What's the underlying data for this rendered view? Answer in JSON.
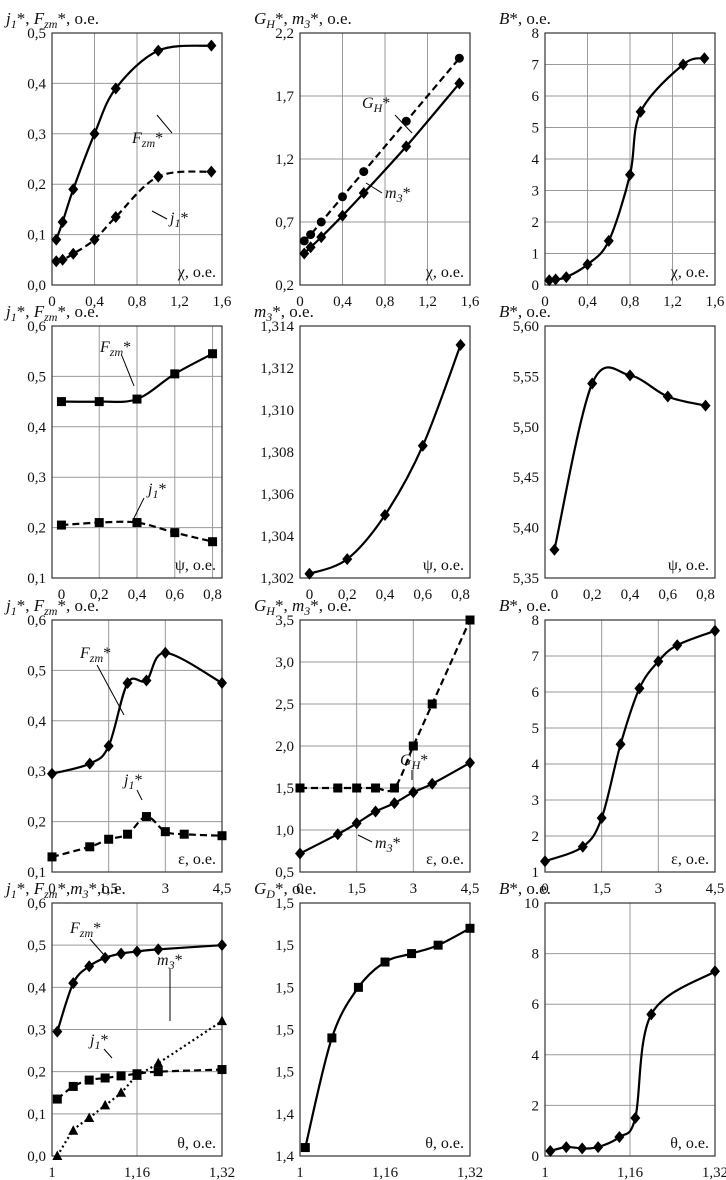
{
  "chart_data": [
    {
      "type": "line",
      "ylabel": "j₁*, F_zm*, о.е.",
      "xlabel": "χ, о.е.",
      "xlim": [
        0,
        1.6
      ],
      "ylim": [
        0,
        0.5
      ],
      "xticks": [
        0,
        0.4,
        0.8,
        1.2,
        1.6
      ],
      "yticks": [
        0,
        0.1,
        0.2,
        0.3,
        0.4,
        0.5
      ],
      "x_tick_labels": [
        "0",
        "0,4",
        "0,8",
        "1,2",
        "1,6"
      ],
      "y_tick_labels": [
        "0,0",
        "0,1",
        "0,2",
        "0,3",
        "0,4",
        "0,5"
      ],
      "grid": true,
      "series": [
        {
          "name": "F_zm*",
          "style": "solid",
          "marker": "diamond",
          "x": [
            0.04,
            0.1,
            0.2,
            0.4,
            0.6,
            1.0,
            1.5
          ],
          "y": [
            0.09,
            0.125,
            0.19,
            0.3,
            0.39,
            0.465,
            0.475
          ]
        },
        {
          "name": "j₁*",
          "style": "dashed",
          "marker": "diamond",
          "x": [
            0.04,
            0.1,
            0.2,
            0.4,
            0.6,
            1.0,
            1.5
          ],
          "y": [
            0.047,
            0.05,
            0.062,
            0.09,
            0.135,
            0.215,
            0.225
          ]
        }
      ],
      "annotations": [
        "F_zm*",
        "j₁*"
      ]
    },
    {
      "type": "line",
      "ylabel": "G_H*, m₃*, о.е.",
      "xlabel": "χ, о.е.",
      "xlim": [
        0,
        1.6
      ],
      "ylim": [
        0.2,
        2.2
      ],
      "xticks": [
        0,
        0.4,
        0.8,
        1.2,
        1.6
      ],
      "yticks": [
        0.2,
        0.7,
        1.2,
        1.7,
        2.2
      ],
      "x_tick_labels": [
        "0",
        "0,4",
        "0,8",
        "1,2",
        "1,6"
      ],
      "y_tick_labels": [
        "0,2",
        "0,7",
        "1,2",
        "1,7",
        "2,2"
      ],
      "grid": true,
      "series": [
        {
          "name": "G_H*",
          "style": "dashed",
          "marker": "circle",
          "x": [
            0.04,
            0.1,
            0.2,
            0.4,
            0.6,
            1.0,
            1.5
          ],
          "y": [
            0.55,
            0.6,
            0.7,
            0.9,
            1.1,
            1.5,
            2.0
          ]
        },
        {
          "name": "m₃*",
          "style": "solid",
          "marker": "diamond",
          "x": [
            0.04,
            0.1,
            0.2,
            0.4,
            0.6,
            1.0,
            1.5
          ],
          "y": [
            0.45,
            0.5,
            0.58,
            0.75,
            0.93,
            1.3,
            1.8
          ]
        }
      ],
      "annotations": [
        "G_H*",
        "m₃*"
      ]
    },
    {
      "type": "line",
      "ylabel": "B*, о.е.",
      "xlabel": "χ, о.е.",
      "xlim": [
        0,
        1.6
      ],
      "ylim": [
        0,
        8
      ],
      "xticks": [
        0,
        0.4,
        0.8,
        1.2,
        1.6
      ],
      "yticks": [
        0,
        1,
        2,
        3,
        4,
        5,
        6,
        7,
        8
      ],
      "x_tick_labels": [
        "0",
        "0,4",
        "0,8",
        "1,2",
        "1,6"
      ],
      "y_tick_labels": [
        "0",
        "1",
        "2",
        "3",
        "4",
        "5",
        "6",
        "7",
        "8"
      ],
      "grid": true,
      "series": [
        {
          "name": "B*",
          "style": "solid",
          "marker": "diamond",
          "x": [
            0.04,
            0.1,
            0.2,
            0.4,
            0.6,
            0.8,
            0.9,
            1.3,
            1.5
          ],
          "y": [
            0.15,
            0.18,
            0.25,
            0.65,
            1.4,
            3.5,
            5.5,
            7.0,
            7.2
          ]
        }
      ]
    },
    {
      "type": "line",
      "ylabel": "j₁*, F_zm*, о.е.",
      "xlabel": "ψ, о.е.",
      "xlim": [
        -0.05,
        0.85
      ],
      "ylim": [
        0.1,
        0.6
      ],
      "xticks": [
        0,
        0.2,
        0.4,
        0.6,
        0.8
      ],
      "yticks": [
        0.1,
        0.2,
        0.3,
        0.4,
        0.5,
        0.6
      ],
      "x_tick_labels": [
        "0",
        "0,2",
        "0,4",
        "0,6",
        "0,8"
      ],
      "y_tick_labels": [
        "0,1",
        "0,2",
        "0,3",
        "0,4",
        "0,5",
        "0,6"
      ],
      "grid": true,
      "series": [
        {
          "name": "F_zm*",
          "style": "solid",
          "marker": "square",
          "x": [
            0,
            0.2,
            0.4,
            0.6,
            0.8
          ],
          "y": [
            0.45,
            0.45,
            0.455,
            0.505,
            0.545
          ]
        },
        {
          "name": "j₁*",
          "style": "dashed",
          "marker": "square",
          "x": [
            0,
            0.2,
            0.4,
            0.6,
            0.8
          ],
          "y": [
            0.205,
            0.21,
            0.21,
            0.19,
            0.172
          ]
        }
      ],
      "annotations": [
        "F_zm*",
        "j₁*"
      ]
    },
    {
      "type": "line",
      "ylabel": "m₃*, о.е.",
      "xlabel": "ψ, о.е.",
      "xlim": [
        -0.05,
        0.85
      ],
      "ylim": [
        1.302,
        1.314
      ],
      "xticks": [
        0,
        0.2,
        0.4,
        0.6,
        0.8
      ],
      "yticks": [
        1.302,
        1.304,
        1.306,
        1.308,
        1.31,
        1.312,
        1.314
      ],
      "x_tick_labels": [
        "0",
        "0,2",
        "0,4",
        "0,6",
        "0,8"
      ],
      "y_tick_labels": [
        "1,302",
        "1,304",
        "1,306",
        "1,308",
        "1,310",
        "1,312",
        "1,314"
      ],
      "grid": false,
      "series": [
        {
          "name": "m₃*",
          "style": "solid",
          "marker": "diamond",
          "x": [
            0,
            0.2,
            0.4,
            0.6,
            0.8
          ],
          "y": [
            1.3022,
            1.3029,
            1.305,
            1.3083,
            1.3131
          ]
        }
      ]
    },
    {
      "type": "line",
      "ylabel": "B*, о.е.",
      "xlabel": "ψ, о.е.",
      "xlim": [
        -0.05,
        0.85
      ],
      "ylim": [
        5.35,
        5.6
      ],
      "xticks": [
        0,
        0.2,
        0.4,
        0.6,
        0.8
      ],
      "yticks": [
        5.35,
        5.4,
        5.45,
        5.5,
        5.55,
        5.6
      ],
      "x_tick_labels": [
        "0",
        "0,2",
        "0,4",
        "0,6",
        "0,8"
      ],
      "y_tick_labels": [
        "5,35",
        "5,40",
        "5,45",
        "5,50",
        "5,55",
        "5,60"
      ],
      "grid": false,
      "series": [
        {
          "name": "B*",
          "style": "solid",
          "marker": "diamond",
          "x": [
            0,
            0.2,
            0.4,
            0.6,
            0.8
          ],
          "y": [
            5.378,
            5.543,
            5.551,
            5.53,
            5.521
          ]
        }
      ]
    },
    {
      "type": "line",
      "ylabel": "j₁*, F_zm*, о.е.",
      "xlabel": "ε, о.е.",
      "xlim": [
        0,
        4.5
      ],
      "ylim": [
        0.1,
        0.6
      ],
      "xticks": [
        0,
        1.5,
        3,
        4.5
      ],
      "yticks": [
        0.1,
        0.2,
        0.3,
        0.4,
        0.5,
        0.6
      ],
      "x_tick_labels": [
        "0",
        "1,5",
        "3",
        "4,5"
      ],
      "y_tick_labels": [
        "0,1",
        "0,2",
        "0,3",
        "0,4",
        "0,5",
        "0,6"
      ],
      "grid": true,
      "series": [
        {
          "name": "F_zm*",
          "style": "solid",
          "marker": "diamond",
          "x": [
            0,
            1,
            1.5,
            2,
            2.5,
            3,
            4.5
          ],
          "y": [
            0.295,
            0.315,
            0.35,
            0.475,
            0.48,
            0.535,
            0.475
          ]
        },
        {
          "name": "j₁*",
          "style": "dashed",
          "marker": "square",
          "x": [
            0,
            1,
            1.5,
            2,
            2.5,
            3,
            3.5,
            4.5
          ],
          "y": [
            0.13,
            0.15,
            0.165,
            0.175,
            0.21,
            0.18,
            0.175,
            0.172
          ]
        }
      ],
      "annotations": [
        "F_zm*",
        "j₁*"
      ]
    },
    {
      "type": "line",
      "ylabel": "G_H*, m₃*, о.е.",
      "xlabel": "ε, о.е.",
      "xlim": [
        0,
        4.5
      ],
      "ylim": [
        0.5,
        3.5
      ],
      "xticks": [
        0,
        1.5,
        3,
        4.5
      ],
      "yticks": [
        0.5,
        1.0,
        1.5,
        2.0,
        2.5,
        3.0,
        3.5
      ],
      "x_tick_labels": [
        "0",
        "1,5",
        "3",
        "4,5"
      ],
      "y_tick_labels": [
        "0,5",
        "1,0",
        "1,5",
        "2,0",
        "2,5",
        "3,0",
        "3,5"
      ],
      "grid": true,
      "series": [
        {
          "name": "G_H*",
          "style": "dashed",
          "marker": "square",
          "x": [
            0,
            1,
            1.5,
            2,
            2.5,
            3,
            3.5,
            4.5
          ],
          "y": [
            1.5,
            1.5,
            1.5,
            1.5,
            1.5,
            2.0,
            2.5,
            3.5
          ]
        },
        {
          "name": "m₃*",
          "style": "solid",
          "marker": "diamond",
          "x": [
            0,
            1,
            1.5,
            2,
            2.5,
            3,
            3.5,
            4.5
          ],
          "y": [
            0.72,
            0.95,
            1.08,
            1.22,
            1.32,
            1.45,
            1.55,
            1.8
          ]
        }
      ],
      "annotations": [
        "G_H*",
        "m₃*"
      ]
    },
    {
      "type": "line",
      "ylabel": "B*, о.е.",
      "xlabel": "ε, о.е.",
      "xlim": [
        0,
        4.5
      ],
      "ylim": [
        1,
        8
      ],
      "xticks": [
        0,
        1.5,
        3,
        4.5
      ],
      "yticks": [
        1,
        2,
        3,
        4,
        5,
        6,
        7,
        8
      ],
      "x_tick_labels": [
        "0",
        "1,5",
        "3",
        "4,5"
      ],
      "y_tick_labels": [
        "1",
        "2",
        "3",
        "4",
        "5",
        "6",
        "7",
        "8"
      ],
      "grid": true,
      "series": [
        {
          "name": "B*",
          "style": "solid",
          "marker": "diamond",
          "x": [
            0,
            1,
            1.5,
            2,
            2.5,
            3,
            3.5,
            4.5
          ],
          "y": [
            1.3,
            1.7,
            2.5,
            4.55,
            6.1,
            6.85,
            7.3,
            7.7
          ]
        }
      ]
    },
    {
      "type": "line",
      "ylabel": "j₁*, F_zm*,m₃*,о.е.",
      "xlabel": "θ, о.е.",
      "xlim": [
        1.0,
        1.32
      ],
      "ylim": [
        0,
        0.6
      ],
      "xticks": [
        1.0,
        1.16,
        1.32
      ],
      "yticks": [
        0,
        0.1,
        0.2,
        0.3,
        0.4,
        0.5,
        0.6
      ],
      "x_tick_labels": [
        "1",
        "1,16",
        "1,32"
      ],
      "y_tick_labels": [
        "0,0",
        "0,1",
        "0,2",
        "0,3",
        "0,4",
        "0,5",
        "0,6"
      ],
      "grid": true,
      "series": [
        {
          "name": "F_zm*",
          "style": "solid",
          "marker": "diamond",
          "x": [
            1.01,
            1.04,
            1.07,
            1.1,
            1.13,
            1.16,
            1.2,
            1.32
          ],
          "y": [
            0.295,
            0.41,
            0.45,
            0.47,
            0.48,
            0.485,
            0.49,
            0.5
          ]
        },
        {
          "name": "j₁*",
          "style": "dashed",
          "marker": "square",
          "x": [
            1.01,
            1.04,
            1.07,
            1.1,
            1.13,
            1.16,
            1.2,
            1.32
          ],
          "y": [
            0.135,
            0.165,
            0.18,
            0.185,
            0.19,
            0.195,
            0.2,
            0.205
          ]
        },
        {
          "name": "m₃*",
          "style": "dotted",
          "marker": "triangle",
          "x": [
            1.01,
            1.04,
            1.07,
            1.1,
            1.13,
            1.16,
            1.2,
            1.32
          ],
          "y": [
            0.0,
            0.06,
            0.09,
            0.12,
            0.15,
            0.19,
            0.22,
            0.32
          ]
        }
      ],
      "annotations": [
        "F_zm*",
        "j₁*",
        "m₃*"
      ]
    },
    {
      "type": "line",
      "ylabel": "G_D*, о.е.",
      "xlabel": "θ, о.е.",
      "xlim": [
        1.0,
        1.32
      ],
      "ylim": [
        1.4,
        1.55
      ],
      "xticks": [
        1.0,
        1.16,
        1.32
      ],
      "yticks": [
        1.4,
        1.425,
        1.45,
        1.475,
        1.5,
        1.525,
        1.55
      ],
      "x_tick_labels": [
        "1",
        "1,16",
        "1,32"
      ],
      "y_tick_labels": [
        "1,4",
        "1,4",
        "1,5",
        "1,5",
        "1,5",
        "1,5",
        "1,5"
      ],
      "grid": false,
      "series": [
        {
          "name": "G_D*",
          "style": "solid",
          "marker": "square",
          "x": [
            1.01,
            1.06,
            1.11,
            1.16,
            1.21,
            1.26,
            1.32
          ],
          "y": [
            1.405,
            1.47,
            1.5,
            1.515,
            1.52,
            1.525,
            1.535
          ]
        }
      ]
    },
    {
      "type": "line",
      "ylabel": "B*, о.е.",
      "xlabel": "θ, о.е.",
      "xlim": [
        1.0,
        1.32
      ],
      "ylim": [
        0,
        10
      ],
      "xticks": [
        1.0,
        1.16,
        1.32
      ],
      "yticks": [
        0,
        2,
        4,
        6,
        8,
        10
      ],
      "x_tick_labels": [
        "1",
        "1,16",
        "1,32"
      ],
      "y_tick_labels": [
        "0",
        "2",
        "4",
        "6",
        "8",
        "10"
      ],
      "grid": true,
      "series": [
        {
          "name": "B*",
          "style": "solid",
          "marker": "diamond",
          "x": [
            1.01,
            1.04,
            1.07,
            1.1,
            1.14,
            1.17,
            1.2,
            1.32
          ],
          "y": [
            0.2,
            0.35,
            0.3,
            0.35,
            0.75,
            1.5,
            5.6,
            7.3
          ]
        }
      ]
    }
  ]
}
